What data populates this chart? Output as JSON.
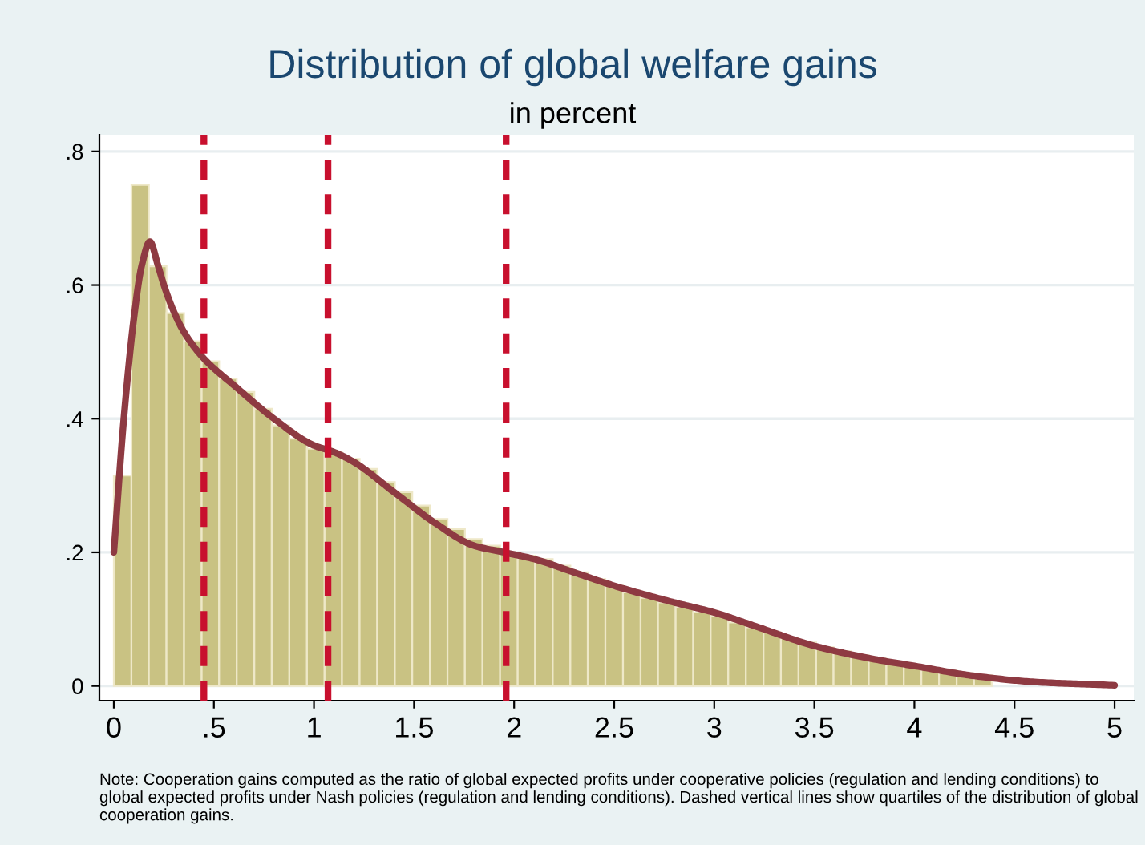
{
  "chart_data": {
    "type": "histogram",
    "title": "Distribution of global welfare gains",
    "subtitle": "in percent",
    "series": [
      {
        "color": "#c9c283",
        "bins": [
          0,
          0.088,
          0.175,
          0.263,
          0.351,
          0.439,
          0.526,
          0.614,
          0.702,
          0.789,
          0.877,
          0.965,
          1.053,
          1.14,
          1.228,
          1.316,
          1.404,
          1.491,
          1.579,
          1.667,
          1.754,
          1.842,
          1.93,
          2.018,
          2.105,
          2.193,
          2.281,
          2.368,
          2.456,
          2.544,
          2.632,
          2.719,
          2.807,
          2.895,
          2.982,
          3.07,
          3.158,
          3.246,
          3.333,
          3.421,
          3.509,
          3.596,
          3.684,
          3.772,
          3.86,
          3.947,
          4.035,
          4.123,
          4.211,
          4.298,
          4.386,
          4.474,
          4.561,
          4.649,
          4.737,
          4.825,
          4.912,
          5
        ],
        "values": [
          0.315,
          0.75,
          0.628,
          0.558,
          0.516,
          0.486,
          0.46,
          0.44,
          0.415,
          0.39,
          0.37,
          0.355,
          0.35,
          0.34,
          0.325,
          0.305,
          0.29,
          0.27,
          0.25,
          0.235,
          0.22,
          0.21,
          0.2,
          0.195,
          0.19,
          0.18,
          0.17,
          0.16,
          0.15,
          0.14,
          0.132,
          0.125,
          0.118,
          0.11,
          0.105,
          0.095,
          0.088,
          0.08,
          0.072,
          0.065,
          0.058,
          0.052,
          0.046,
          0.041,
          0.036,
          0.031,
          0.027,
          0.023,
          0.019,
          0.016,
          null,
          null,
          null,
          null,
          null,
          0.003,
          0.002
        ]
      },
      {
        "type": "line",
        "color": "#8e3a42",
        "x": [
          0,
          0.05,
          0.1,
          0.14,
          0.18,
          0.22,
          0.25,
          0.3,
          0.35,
          0.45,
          0.6,
          0.8,
          1.0,
          1.1,
          1.2,
          1.4,
          1.6,
          1.8,
          1.95,
          2.1,
          2.3,
          2.5,
          2.8,
          3.0,
          3.2,
          3.5,
          3.8,
          4.0,
          4.3,
          4.6,
          5.0
        ],
        "values": [
          0.2,
          0.4,
          0.55,
          0.63,
          0.665,
          0.63,
          0.6,
          0.56,
          0.53,
          0.49,
          0.45,
          0.4,
          0.36,
          0.35,
          0.335,
          0.29,
          0.245,
          0.21,
          0.2,
          0.19,
          0.17,
          0.15,
          0.125,
          0.11,
          0.09,
          0.06,
          0.04,
          0.03,
          0.015,
          0.006,
          0.001
        ]
      }
    ],
    "ref_lines": [
      {
        "axis": "x",
        "value": 0.45,
        "color": "#c8102e",
        "line_style": "dashed"
      },
      {
        "axis": "x",
        "value": 1.07,
        "color": "#c8102e",
        "line_style": "dashed"
      },
      {
        "axis": "x",
        "value": 1.96,
        "color": "#c8102e",
        "line_style": "dashed"
      }
    ],
    "xlim": [
      -0.072,
      5.096
    ],
    "ylim": [
      -0.022,
      0.825
    ],
    "xticks": [
      0,
      {
        "value": 0.5,
        "label": ".5"
      },
      1,
      1.5,
      2,
      2.5,
      3,
      3.5,
      4,
      4.5,
      5
    ],
    "yticks": [
      0,
      {
        "value": 0.2,
        "label": ".2"
      },
      {
        "value": 0.4,
        "label": ".4"
      },
      {
        "value": 0.6,
        "label": ".6"
      },
      {
        "value": 0.8,
        "label": ".8"
      }
    ],
    "grid": "y",
    "legend": false,
    "annotations": [
      "Note: Cooperation gains computed as the ratio of global expected profits under cooperative policies (regulation and lending conditions) to global expected profits under Nash policies (regulation and lending conditions). Dashed vertical lines show quartiles of the distribution of global cooperation gains."
    ]
  }
}
